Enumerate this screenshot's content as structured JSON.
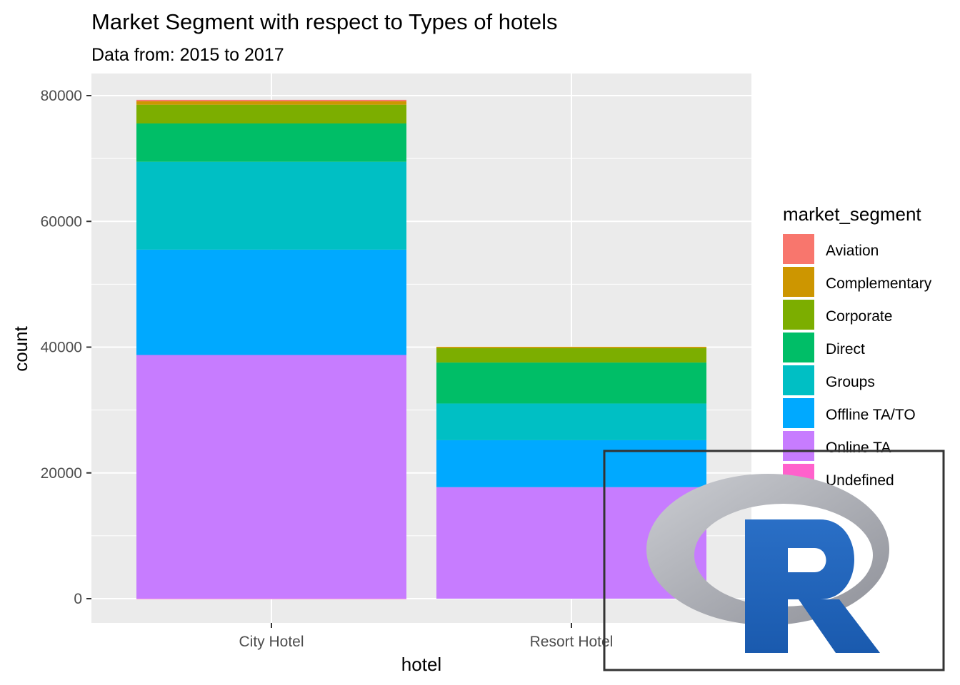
{
  "chart_data": {
    "type": "bar",
    "stacked": true,
    "title": "Market Segment  with respect to Types of hotels",
    "subtitle": "Data from: 2015 to 2017",
    "xlabel": "hotel",
    "ylabel": "count",
    "categories": [
      "City Hotel",
      "Resort Hotel"
    ],
    "ylim": [
      0,
      83800
    ],
    "yticks": [
      0,
      20000,
      40000,
      60000,
      80000
    ],
    "ytick_labels": [
      "0",
      "20000",
      "40000",
      "60000",
      "80000"
    ],
    "grid": true,
    "legend": {
      "title": "market_segment",
      "position": "right"
    },
    "series": [
      {
        "name": "Aviation",
        "color": "#F8766D",
        "values": [
          230,
          0
        ]
      },
      {
        "name": "Complementary",
        "color": "#CD9600",
        "values": [
          540,
          200
        ]
      },
      {
        "name": "Corporate",
        "color": "#7CAE00",
        "values": [
          2990,
          2310
        ]
      },
      {
        "name": "Direct",
        "color": "#00BE67",
        "values": [
          6090,
          6510
        ]
      },
      {
        "name": "Groups",
        "color": "#00BFC4",
        "values": [
          13980,
          5840
        ]
      },
      {
        "name": "Offline TA/TO",
        "color": "#00A9FF",
        "values": [
          16750,
          7470
        ]
      },
      {
        "name": "Online TA",
        "color": "#C77CFF",
        "values": [
          38750,
          17730
        ]
      },
      {
        "name": "Undefined",
        "color": "#FF61CC",
        "values": [
          2,
          0
        ]
      }
    ]
  },
  "logo": {
    "name": "R",
    "letter": "R",
    "ring_color": "#a7a9b0",
    "letter_color": "#2166c0"
  }
}
